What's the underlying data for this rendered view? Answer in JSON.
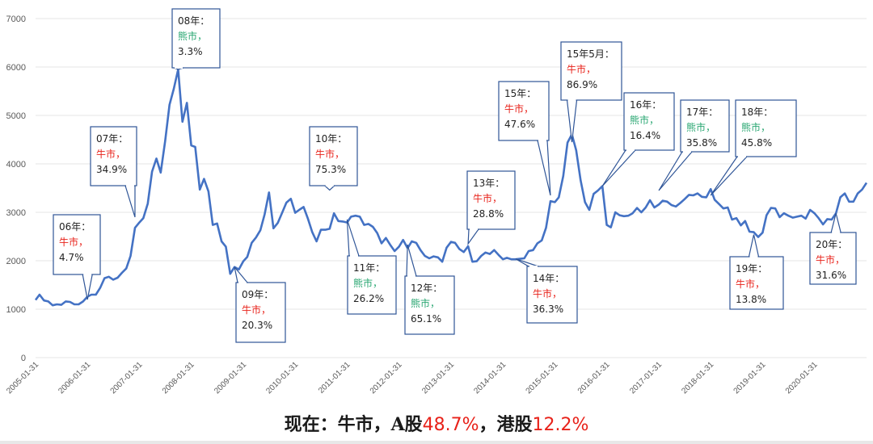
{
  "chart_data": {
    "type": "line",
    "ylim": [
      0,
      7000
    ],
    "yticks": [
      0,
      1000,
      2000,
      3000,
      4000,
      5000,
      6000,
      7000
    ],
    "xticks": [
      "2005-01-31",
      "2006-01-31",
      "2007-01-31",
      "2008-01-31",
      "2009-01-31",
      "2010-01-31",
      "2011-01-31",
      "2012-01-31",
      "2013-01-31",
      "2014-01-31",
      "2015-01-31",
      "2016-01-31",
      "2017-01-31",
      "2018-01-31",
      "2019-01-31",
      "2020-01-31"
    ],
    "grid": "horizontal",
    "line_color": "#4472c4",
    "series": [
      {
        "points": [
          [
            "2005-01-31",
            1190
          ],
          [
            "2005-02-28",
            1300
          ],
          [
            "2005-03-31",
            1180
          ],
          [
            "2005-04-30",
            1160
          ],
          [
            "2005-05-31",
            1080
          ],
          [
            "2005-06-30",
            1100
          ],
          [
            "2005-07-31",
            1090
          ],
          [
            "2005-08-31",
            1160
          ],
          [
            "2005-09-30",
            1150
          ],
          [
            "2005-10-31",
            1100
          ],
          [
            "2005-11-30",
            1100
          ],
          [
            "2005-12-31",
            1160
          ],
          [
            "2006-01-31",
            1260
          ],
          [
            "2006-02-28",
            1300
          ],
          [
            "2006-03-31",
            1300
          ],
          [
            "2006-04-30",
            1440
          ],
          [
            "2006-05-31",
            1640
          ],
          [
            "2006-06-30",
            1670
          ],
          [
            "2006-07-31",
            1610
          ],
          [
            "2006-08-31",
            1650
          ],
          [
            "2006-09-30",
            1750
          ],
          [
            "2006-10-31",
            1840
          ],
          [
            "2006-11-30",
            2100
          ],
          [
            "2006-12-31",
            2680
          ],
          [
            "2007-01-31",
            2790
          ],
          [
            "2007-02-28",
            2880
          ],
          [
            "2007-03-31",
            3180
          ],
          [
            "2007-04-30",
            3840
          ],
          [
            "2007-05-31",
            4110
          ],
          [
            "2007-06-30",
            3820
          ],
          [
            "2007-07-31",
            4470
          ],
          [
            "2007-08-31",
            5220
          ],
          [
            "2007-09-30",
            5550
          ],
          [
            "2007-10-31",
            5950
          ],
          [
            "2007-11-30",
            4870
          ],
          [
            "2007-12-31",
            5260
          ],
          [
            "2008-01-31",
            4380
          ],
          [
            "2008-02-28",
            4350
          ],
          [
            "2008-03-31",
            3470
          ],
          [
            "2008-04-30",
            3690
          ],
          [
            "2008-05-31",
            3430
          ],
          [
            "2008-06-30",
            2740
          ],
          [
            "2008-07-31",
            2770
          ],
          [
            "2008-08-31",
            2400
          ],
          [
            "2008-09-30",
            2290
          ],
          [
            "2008-10-31",
            1730
          ],
          [
            "2008-11-30",
            1870
          ],
          [
            "2008-12-31",
            1820
          ],
          [
            "2009-01-31",
            1990
          ],
          [
            "2009-02-28",
            2080
          ],
          [
            "2009-03-31",
            2370
          ],
          [
            "2009-04-30",
            2480
          ],
          [
            "2009-05-31",
            2630
          ],
          [
            "2009-06-30",
            2960
          ],
          [
            "2009-07-31",
            3410
          ],
          [
            "2009-08-31",
            2670
          ],
          [
            "2009-09-30",
            2780
          ],
          [
            "2009-10-31",
            2990
          ],
          [
            "2009-11-30",
            3200
          ],
          [
            "2009-12-31",
            3280
          ],
          [
            "2010-01-31",
            2990
          ],
          [
            "2010-02-28",
            3050
          ],
          [
            "2010-03-31",
            3110
          ],
          [
            "2010-04-30",
            2870
          ],
          [
            "2010-05-31",
            2590
          ],
          [
            "2010-06-30",
            2400
          ],
          [
            "2010-07-31",
            2640
          ],
          [
            "2010-08-31",
            2640
          ],
          [
            "2010-09-30",
            2660
          ],
          [
            "2010-10-31",
            2980
          ],
          [
            "2010-11-30",
            2820
          ],
          [
            "2010-12-31",
            2810
          ],
          [
            "2011-01-31",
            2790
          ],
          [
            "2011-02-28",
            2910
          ],
          [
            "2011-03-31",
            2930
          ],
          [
            "2011-04-30",
            2910
          ],
          [
            "2011-05-31",
            2740
          ],
          [
            "2011-06-30",
            2760
          ],
          [
            "2011-07-31",
            2700
          ],
          [
            "2011-08-31",
            2570
          ],
          [
            "2011-09-30",
            2360
          ],
          [
            "2011-10-31",
            2470
          ],
          [
            "2011-11-30",
            2330
          ],
          [
            "2011-12-31",
            2200
          ],
          [
            "2012-01-31",
            2290
          ],
          [
            "2012-02-29",
            2430
          ],
          [
            "2012-03-31",
            2260
          ],
          [
            "2012-04-30",
            2400
          ],
          [
            "2012-05-31",
            2370
          ],
          [
            "2012-06-30",
            2220
          ],
          [
            "2012-07-31",
            2100
          ],
          [
            "2012-08-31",
            2050
          ],
          [
            "2012-09-30",
            2090
          ],
          [
            "2012-10-31",
            2070
          ],
          [
            "2012-11-30",
            1980
          ],
          [
            "2012-12-31",
            2270
          ],
          [
            "2013-01-31",
            2390
          ],
          [
            "2013-02-28",
            2370
          ],
          [
            "2013-03-31",
            2240
          ],
          [
            "2013-04-30",
            2180
          ],
          [
            "2013-05-31",
            2300
          ],
          [
            "2013-06-30",
            1980
          ],
          [
            "2013-07-31",
            1990
          ],
          [
            "2013-08-31",
            2100
          ],
          [
            "2013-09-30",
            2170
          ],
          [
            "2013-10-31",
            2140
          ],
          [
            "2013-11-30",
            2220
          ],
          [
            "2013-12-31",
            2120
          ],
          [
            "2014-01-31",
            2030
          ],
          [
            "2014-02-28",
            2060
          ],
          [
            "2014-03-31",
            2030
          ],
          [
            "2014-04-30",
            2030
          ],
          [
            "2014-05-31",
            2040
          ],
          [
            "2014-06-30",
            2050
          ],
          [
            "2014-07-31",
            2200
          ],
          [
            "2014-08-31",
            2220
          ],
          [
            "2014-09-30",
            2360
          ],
          [
            "2014-10-31",
            2420
          ],
          [
            "2014-11-30",
            2680
          ],
          [
            "2014-12-31",
            3230
          ],
          [
            "2015-01-31",
            3210
          ],
          [
            "2015-02-28",
            3310
          ],
          [
            "2015-03-31",
            3750
          ],
          [
            "2015-04-30",
            4440
          ],
          [
            "2015-05-31",
            4610
          ],
          [
            "2015-06-30",
            4280
          ],
          [
            "2015-07-31",
            3660
          ],
          [
            "2015-08-31",
            3210
          ],
          [
            "2015-09-30",
            3050
          ],
          [
            "2015-10-31",
            3380
          ],
          [
            "2015-11-30",
            3450
          ],
          [
            "2015-12-31",
            3540
          ],
          [
            "2016-01-31",
            2740
          ],
          [
            "2016-02-29",
            2690
          ],
          [
            "2016-03-31",
            3000
          ],
          [
            "2016-04-30",
            2940
          ],
          [
            "2016-05-31",
            2920
          ],
          [
            "2016-06-30",
            2930
          ],
          [
            "2016-07-31",
            2980
          ],
          [
            "2016-08-31",
            3090
          ],
          [
            "2016-09-30",
            3000
          ],
          [
            "2016-10-31",
            3100
          ],
          [
            "2016-11-30",
            3250
          ],
          [
            "2016-12-31",
            3100
          ],
          [
            "2017-01-31",
            3160
          ],
          [
            "2017-02-28",
            3240
          ],
          [
            "2017-03-31",
            3220
          ],
          [
            "2017-04-30",
            3150
          ],
          [
            "2017-05-31",
            3120
          ],
          [
            "2017-06-30",
            3190
          ],
          [
            "2017-07-31",
            3270
          ],
          [
            "2017-08-31",
            3360
          ],
          [
            "2017-09-30",
            3350
          ],
          [
            "2017-10-31",
            3390
          ],
          [
            "2017-11-30",
            3320
          ],
          [
            "2017-12-31",
            3310
          ],
          [
            "2018-01-31",
            3480
          ],
          [
            "2018-02-28",
            3260
          ],
          [
            "2018-03-31",
            3170
          ],
          [
            "2018-04-30",
            3080
          ],
          [
            "2018-05-31",
            3100
          ],
          [
            "2018-06-30",
            2850
          ],
          [
            "2018-07-31",
            2880
          ],
          [
            "2018-08-31",
            2730
          ],
          [
            "2018-09-30",
            2820
          ],
          [
            "2018-10-31",
            2600
          ],
          [
            "2018-11-30",
            2590
          ],
          [
            "2018-12-31",
            2490
          ],
          [
            "2019-01-31",
            2580
          ],
          [
            "2019-02-28",
            2940
          ],
          [
            "2019-03-31",
            3090
          ],
          [
            "2019-04-30",
            3080
          ],
          [
            "2019-05-31",
            2900
          ],
          [
            "2019-06-30",
            2980
          ],
          [
            "2019-07-31",
            2930
          ],
          [
            "2019-08-31",
            2890
          ],
          [
            "2019-09-30",
            2910
          ],
          [
            "2019-10-31",
            2930
          ],
          [
            "2019-11-30",
            2870
          ],
          [
            "2019-12-31",
            3050
          ],
          [
            "2020-01-31",
            2980
          ],
          [
            "2020-02-29",
            2880
          ],
          [
            "2020-03-31",
            2750
          ],
          [
            "2020-04-30",
            2860
          ],
          [
            "2020-05-31",
            2850
          ],
          [
            "2020-06-30",
            2980
          ],
          [
            "2020-07-31",
            3310
          ],
          [
            "2020-08-31",
            3390
          ],
          [
            "2020-09-30",
            3220
          ],
          [
            "2020-10-31",
            3220
          ],
          [
            "2020-11-30",
            3390
          ],
          [
            "2020-12-31",
            3470
          ],
          [
            "2021-01-31",
            3610
          ]
        ]
      }
    ],
    "annotations": [
      {
        "year": "06年：",
        "status": "牛市，",
        "pct": "4.7%",
        "color": "#e8221a",
        "anchor_date": "2006-01-31",
        "anchor_value": 1200
      },
      {
        "year": "07年：",
        "status": "牛市，",
        "pct": "34.9%",
        "color": "#e8221a",
        "anchor_date": "2006-12-31",
        "anchor_value": 2900
      },
      {
        "year": "08年：",
        "status": "熊市，",
        "pct": "3.3%",
        "color": "#2aa772",
        "anchor_date": "2007-10-31",
        "anchor_value": 5950
      },
      {
        "year": "09年：",
        "status": "牛市，",
        "pct": "20.3%",
        "color": "#e8221a",
        "anchor_date": "2008-11-30",
        "anchor_value": 1870
      },
      {
        "year": "10年：",
        "status": "牛市，",
        "pct": "75.3%",
        "color": "#e8221a",
        "anchor_date": "2010-09-30",
        "anchor_value": 3460
      },
      {
        "year": "11年：",
        "status": "熊市，",
        "pct": "26.2%",
        "color": "#2aa772",
        "anchor_date": "2011-01-31",
        "anchor_value": 2850
      },
      {
        "year": "12年：",
        "status": "熊市，",
        "pct": "65.1%",
        "color": "#2aa772",
        "anchor_date": "2012-03-31",
        "anchor_value": 2330
      },
      {
        "year": "13年：",
        "status": "牛市，",
        "pct": "28.8%",
        "color": "#e8221a",
        "anchor_date": "2013-05-31",
        "anchor_value": 2350
      },
      {
        "year": "14年：",
        "status": "牛市，",
        "pct": "36.3%",
        "color": "#e8221a",
        "anchor_date": "2014-04-30",
        "anchor_value": 2040
      },
      {
        "year": "15年：",
        "status": "牛市，",
        "pct": "47.6%",
        "color": "#e8221a",
        "anchor_date": "2014-12-31",
        "anchor_value": 3350
      },
      {
        "year": "15年5月：",
        "status": "牛市，",
        "pct": "86.9%",
        "color": "#e8221a",
        "anchor_date": "2015-05-31",
        "anchor_value": 4450
      },
      {
        "year": "16年：",
        "status": "熊市，",
        "pct": "16.4%",
        "color": "#2aa772",
        "anchor_date": "2015-12-31",
        "anchor_value": 3540
      },
      {
        "year": "17年：",
        "status": "熊市，",
        "pct": "35.8%",
        "color": "#2aa772",
        "anchor_date": "2017-01-31",
        "anchor_value": 3450
      },
      {
        "year": "18年：",
        "status": "熊市，",
        "pct": "45.8%",
        "color": "#2aa772",
        "anchor_date": "2018-01-31",
        "anchor_value": 3350
      },
      {
        "year": "19年：",
        "status": "牛市，",
        "pct": "13.8%",
        "color": "#e8221a",
        "anchor_date": "2018-11-30",
        "anchor_value": 2540
      },
      {
        "year": "20年：",
        "status": "牛市，",
        "pct": "31.6%",
        "color": "#e8221a",
        "anchor_date": "2020-06-30",
        "anchor_value": 2980
      }
    ]
  },
  "footer": {
    "prefix": "现在：牛市，A股",
    "a_share": "48.7%",
    "sep": "，港股",
    "hk_share": "12.2%"
  },
  "colors": {
    "bull": "#e8221a",
    "bear": "#2aa772",
    "box_border": "#2f5597",
    "line": "#4472c4"
  }
}
